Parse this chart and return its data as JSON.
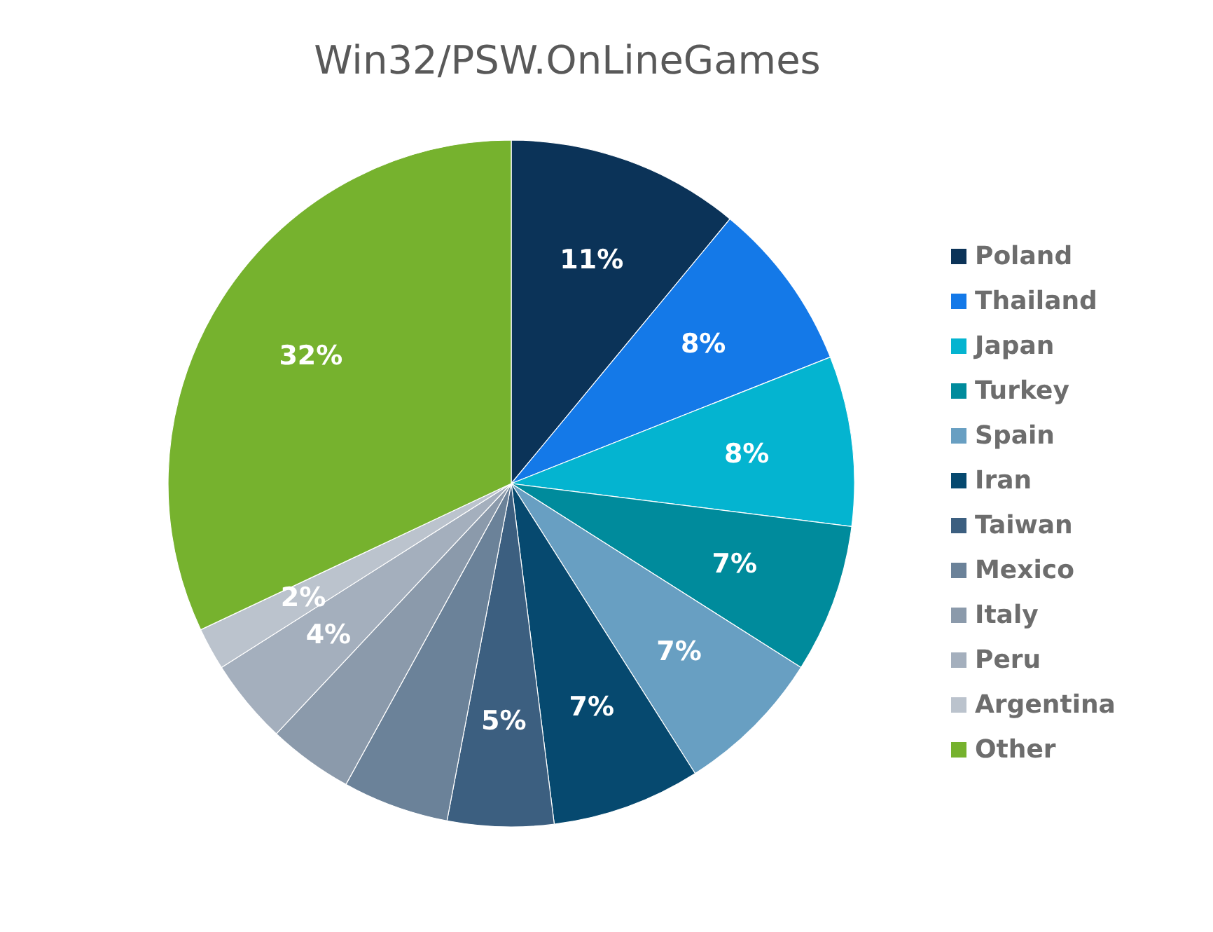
{
  "chart_data": {
    "type": "pie",
    "title": "Win32/PSW.OnLineGames",
    "categories": [
      "Poland",
      "Thailand",
      "Japan",
      "Turkey",
      "Spain",
      "Iran",
      "Taiwan",
      "Mexico",
      "Italy",
      "Peru",
      "Argentina",
      "Other"
    ],
    "values": [
      11,
      8,
      8,
      7,
      7,
      7,
      5,
      5,
      4,
      4,
      2,
      32
    ],
    "colors": [
      "#0b3358",
      "#1479e8",
      "#04b4d0",
      "#008b9c",
      "#689fc2",
      "#06496f",
      "#3c5f80",
      "#6b8299",
      "#8b9aab",
      "#a4afbd",
      "#bbc3cd",
      "#76b22e"
    ],
    "value_labels": [
      "11%",
      "8%",
      "8%",
      "7%",
      "7%",
      "7%",
      "5%",
      null,
      null,
      "4%",
      "2%",
      "32%"
    ],
    "legend": "right"
  }
}
